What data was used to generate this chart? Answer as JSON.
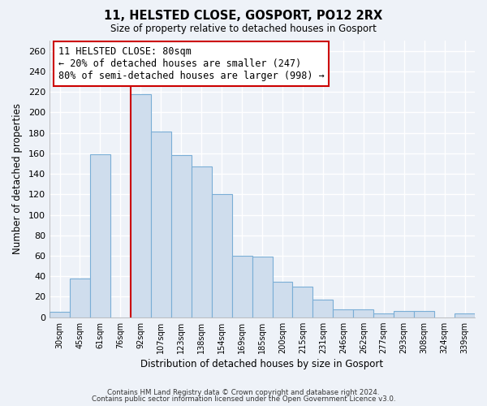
{
  "title": "11, HELSTED CLOSE, GOSPORT, PO12 2RX",
  "subtitle": "Size of property relative to detached houses in Gosport",
  "xlabel": "Distribution of detached houses by size in Gosport",
  "ylabel": "Number of detached properties",
  "bar_color": "#cfdded",
  "bar_edge_color": "#7aaed6",
  "categories": [
    "30sqm",
    "45sqm",
    "61sqm",
    "76sqm",
    "92sqm",
    "107sqm",
    "123sqm",
    "138sqm",
    "154sqm",
    "169sqm",
    "185sqm",
    "200sqm",
    "215sqm",
    "231sqm",
    "246sqm",
    "262sqm",
    "277sqm",
    "293sqm",
    "308sqm",
    "324sqm",
    "339sqm"
  ],
  "values": [
    5,
    38,
    159,
    0,
    218,
    181,
    158,
    147,
    120,
    60,
    59,
    35,
    30,
    17,
    8,
    8,
    4,
    6,
    6,
    0,
    4
  ],
  "ylim": [
    0,
    270
  ],
  "yticks": [
    0,
    20,
    40,
    60,
    80,
    100,
    120,
    140,
    160,
    180,
    200,
    220,
    240,
    260
  ],
  "vline_color": "#cc0000",
  "annotation_title": "11 HELSTED CLOSE: 80sqm",
  "annotation_line1": "← 20% of detached houses are smaller (247)",
  "annotation_line2": "80% of semi-detached houses are larger (998) →",
  "annotation_box_color": "#ffffff",
  "annotation_box_edge": "#cc0000",
  "footnote1": "Contains HM Land Registry data © Crown copyright and database right 2024.",
  "footnote2": "Contains public sector information licensed under the Open Government Licence v3.0.",
  "background_color": "#eef2f8",
  "grid_color": "#ffffff"
}
